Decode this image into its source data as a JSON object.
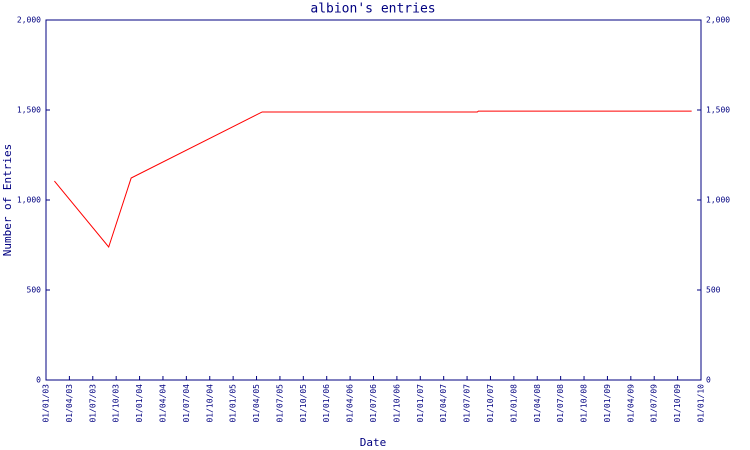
{
  "chart_data": {
    "type": "line",
    "title": "albion's entries",
    "x_label": "Date",
    "y_label": "Number of Entries",
    "series": [
      {
        "name": "albion",
        "color": "#ff0000",
        "x": [
          2003.09,
          2003.67,
          2003.91,
          2005.31,
          2007.61,
          2007.62,
          2009.9
        ],
        "values": [
          1105,
          739,
          1122,
          1489,
          1489,
          1494,
          1494
        ]
      }
    ],
    "xlim": [
      2003,
      2010
    ],
    "xticks": [
      {
        "value": 2003,
        "label": "01/01/03"
      },
      {
        "value": 2003.25,
        "label": "01/04/03"
      },
      {
        "value": 2003.5,
        "label": "01/07/03"
      },
      {
        "value": 2003.75,
        "label": "01/10/03"
      },
      {
        "value": 2004,
        "label": "01/01/04"
      },
      {
        "value": 2004.25,
        "label": "01/04/04"
      },
      {
        "value": 2004.5,
        "label": "01/07/04"
      },
      {
        "value": 2004.75,
        "label": "01/10/04"
      },
      {
        "value": 2005,
        "label": "01/01/05"
      },
      {
        "value": 2005.25,
        "label": "01/04/05"
      },
      {
        "value": 2005.5,
        "label": "01/07/05"
      },
      {
        "value": 2005.75,
        "label": "01/10/05"
      },
      {
        "value": 2006,
        "label": "01/01/06"
      },
      {
        "value": 2006.25,
        "label": "01/04/06"
      },
      {
        "value": 2006.5,
        "label": "01/07/06"
      },
      {
        "value": 2006.75,
        "label": "01/10/06"
      },
      {
        "value": 2007,
        "label": "01/01/07"
      },
      {
        "value": 2007.25,
        "label": "01/04/07"
      },
      {
        "value": 2007.5,
        "label": "01/07/07"
      },
      {
        "value": 2007.75,
        "label": "01/10/07"
      },
      {
        "value": 2008,
        "label": "01/01/08"
      },
      {
        "value": 2008.25,
        "label": "01/04/08"
      },
      {
        "value": 2008.5,
        "label": "01/07/08"
      },
      {
        "value": 2008.75,
        "label": "01/10/08"
      },
      {
        "value": 2009,
        "label": "01/01/09"
      },
      {
        "value": 2009.25,
        "label": "01/04/09"
      },
      {
        "value": 2009.5,
        "label": "01/07/09"
      },
      {
        "value": 2009.75,
        "label": "01/10/09"
      },
      {
        "value": 2010,
        "label": "01/01/10"
      }
    ],
    "ylim": [
      0,
      2000
    ],
    "yticks": [
      0,
      500,
      {
        "value": 1000,
        "label": "1,000"
      },
      {
        "value": 1500,
        "label": "1,500"
      },
      {
        "value": 2000,
        "label": "2,000"
      }
    ],
    "y2lim": [
      0,
      2000
    ],
    "y2ticks": [
      0,
      500,
      {
        "value": 1000,
        "label": "1,000"
      },
      {
        "value": 1500,
        "label": "1,500"
      },
      {
        "value": 2000,
        "label": "2,000"
      }
    ],
    "axis_color": "#000080"
  }
}
